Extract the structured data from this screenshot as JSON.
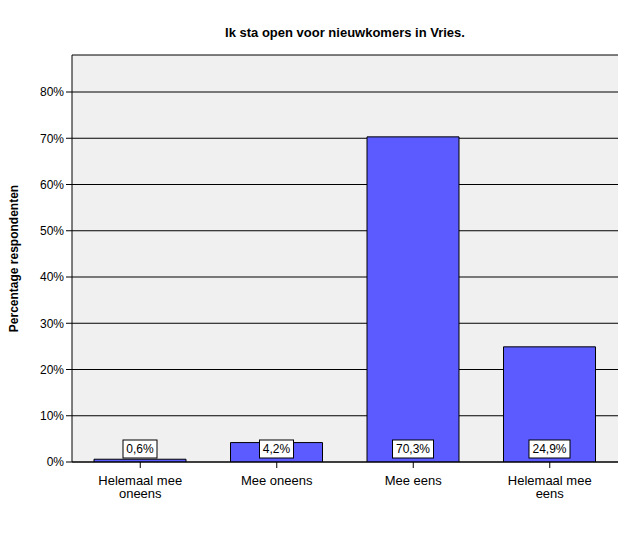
{
  "chart_data": {
    "type": "bar",
    "title": "Ik sta open voor nieuwkomers in Vries.",
    "y_label": "Percentage respondenten",
    "categories": [
      "Helemaal mee oneens",
      "Mee oneens",
      "Mee eens",
      "Helemaal mee eens"
    ],
    "values": [
      0.6,
      4.2,
      70.3,
      24.9
    ],
    "value_labels": [
      "0,6%",
      "4,2%",
      "70,3%",
      "24,9%"
    ],
    "color": "#5b5bff",
    "ylim": [
      0,
      88
    ],
    "yticks": [
      {
        "value": 0,
        "label": "0%"
      },
      {
        "value": 10,
        "label": "10%"
      },
      {
        "value": 20,
        "label": "20%"
      },
      {
        "value": 30,
        "label": "30%"
      },
      {
        "value": 40,
        "label": "40%"
      },
      {
        "value": 50,
        "label": "50%"
      },
      {
        "value": 60,
        "label": "60%"
      },
      {
        "value": 70,
        "label": "70%"
      },
      {
        "value": 80,
        "label": "80%"
      }
    ],
    "grid": true,
    "data_labels": true
  }
}
